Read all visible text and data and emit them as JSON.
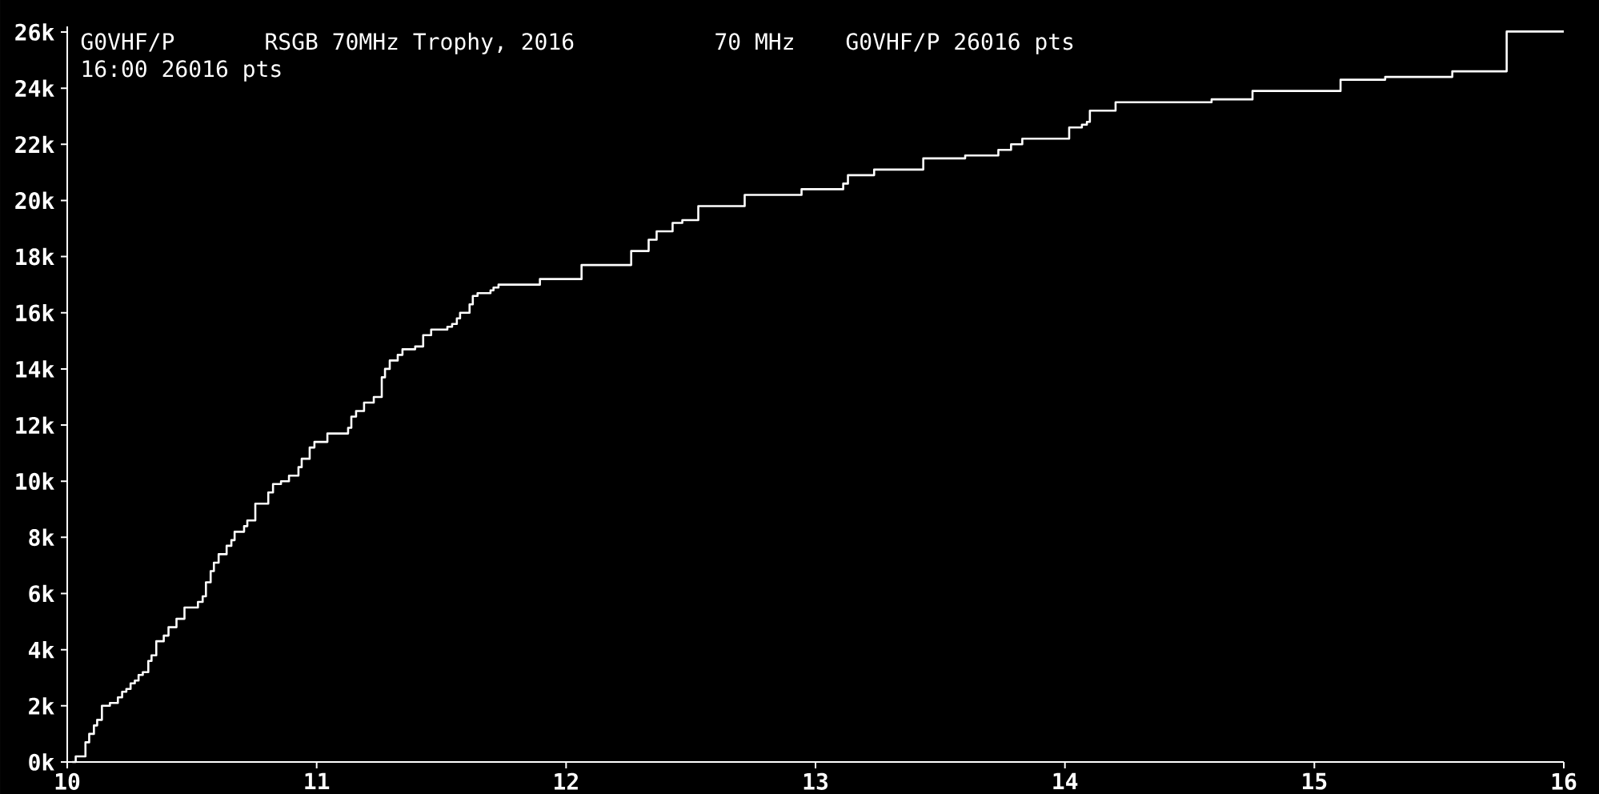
{
  "chart_data": {
    "type": "step",
    "title": "RSGB 70MHz Trophy, 2016",
    "annotations": [
      "G0VHF/P",
      "70 MHz",
      "G0VHF/P 26016 pts",
      "16:00  26016 pts"
    ],
    "xlim": [
      10,
      16
    ],
    "xticks": [
      10,
      11,
      12,
      13,
      14,
      15,
      16
    ],
    "ylim": [
      0,
      26200
    ],
    "yticks": [
      {
        "value": 0,
        "label": "0k"
      },
      {
        "value": 2000,
        "label": "2k"
      },
      {
        "value": 4000,
        "label": "4k"
      },
      {
        "value": 6000,
        "label": "6k"
      },
      {
        "value": 8000,
        "label": "8k"
      },
      {
        "value": 10000,
        "label": "10k"
      },
      {
        "value": 12000,
        "label": "12k"
      },
      {
        "value": 14000,
        "label": "14k"
      },
      {
        "value": 16000,
        "label": "16k"
      },
      {
        "value": 18000,
        "label": "18k"
      },
      {
        "value": 20000,
        "label": "20k"
      },
      {
        "value": 22000,
        "label": "22k"
      },
      {
        "value": 24000,
        "label": "24k"
      },
      {
        "value": 26000,
        "label": "26k"
      }
    ],
    "series": [
      {
        "color": "#ffffff",
        "x": [
          10.02,
          10.034,
          10.073,
          10.088,
          10.107,
          10.12,
          10.139,
          10.171,
          10.203,
          10.22,
          10.237,
          10.254,
          10.271,
          10.286,
          10.303,
          10.325,
          10.338,
          10.357,
          10.387,
          10.406,
          10.438,
          10.47,
          10.524,
          10.543,
          10.556,
          10.575,
          10.588,
          10.607,
          10.639,
          10.658,
          10.671,
          10.709,
          10.722,
          10.754,
          10.806,
          10.825,
          10.857,
          10.889,
          10.927,
          10.94,
          10.972,
          10.991,
          11.043,
          11.126,
          11.139,
          11.158,
          11.19,
          11.229,
          11.261,
          11.274,
          11.293,
          11.325,
          11.344,
          11.395,
          11.427,
          11.459,
          11.524,
          11.543,
          11.562,
          11.575,
          11.613,
          11.626,
          11.645,
          11.697,
          11.709,
          11.729,
          11.895,
          12.062,
          12.261,
          12.331,
          12.363,
          12.427,
          12.466,
          12.53,
          12.716,
          12.944,
          13.111,
          13.13,
          13.235,
          13.432,
          13.6,
          13.733,
          13.784,
          13.829,
          14.017,
          14.068,
          14.088,
          14.1,
          14.203,
          14.588,
          14.752,
          15.105,
          15.284,
          15.553,
          15.771,
          16.0
        ],
        "values": [
          0,
          200,
          700,
          1000,
          1300,
          1500,
          2000,
          2100,
          2300,
          2500,
          2600,
          2800,
          2900,
          3100,
          3200,
          3600,
          3800,
          4300,
          4500,
          4800,
          5100,
          5500,
          5700,
          5900,
          6400,
          6800,
          7100,
          7400,
          7700,
          7900,
          8200,
          8400,
          8600,
          9200,
          9600,
          9900,
          10000,
          10200,
          10500,
          10800,
          11200,
          11400,
          11700,
          11900,
          12300,
          12500,
          12800,
          13000,
          13700,
          14000,
          14300,
          14500,
          14700,
          14800,
          15200,
          15400,
          15500,
          15600,
          15800,
          16000,
          16300,
          16600,
          16700,
          16800,
          16900,
          17000,
          17200,
          17700,
          18200,
          18600,
          18900,
          19200,
          19300,
          19800,
          20200,
          20400,
          20600,
          20900,
          21100,
          21500,
          21600,
          21800,
          22000,
          22200,
          22600,
          22700,
          22800,
          23200,
          23500,
          23600,
          23900,
          24300,
          24400,
          24600,
          26016,
          26016
        ]
      }
    ]
  }
}
